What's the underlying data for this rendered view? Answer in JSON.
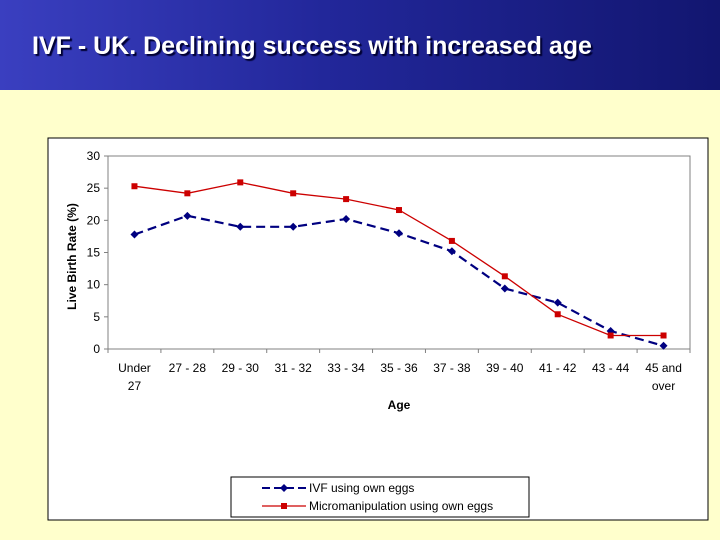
{
  "slide": {
    "title": "IVF - UK.  Declining success with increased age"
  },
  "colors": {
    "header_start": "#3a3fc0",
    "header_end": "#121670",
    "background": "#ffffcc",
    "plot_background": "#ffffff",
    "ivf_series": "#000080",
    "micro_series": "#cc0000"
  },
  "chart_data": {
    "type": "line",
    "xlabel": "Age",
    "ylabel": "Live Birth Rate (%)",
    "ylim": [
      0,
      30
    ],
    "yticks": [
      0,
      5,
      10,
      15,
      20,
      25,
      30
    ],
    "grid": false,
    "legend_position": "bottom",
    "categories": [
      [
        "Under",
        "27"
      ],
      [
        "27 - 28"
      ],
      [
        "29 - 30"
      ],
      [
        "31 - 32"
      ],
      [
        "33 - 34"
      ],
      [
        "35 - 36"
      ],
      [
        "37 - 38"
      ],
      [
        "39 - 40"
      ],
      [
        "41 - 42"
      ],
      [
        "43 - 44"
      ],
      [
        "45 and",
        "over"
      ]
    ],
    "series": [
      {
        "name": "IVF using own eggs",
        "style": "dashed",
        "marker": "diamond",
        "color": "#000080",
        "values": [
          17.8,
          20.7,
          19.0,
          19.0,
          20.2,
          18.0,
          15.2,
          9.4,
          7.2,
          2.8,
          0.5
        ]
      },
      {
        "name": "Micromanipulation using own eggs",
        "style": "solid",
        "marker": "square",
        "color": "#cc0000",
        "values": [
          25.3,
          24.2,
          25.9,
          24.2,
          23.3,
          21.6,
          16.8,
          11.3,
          5.4,
          2.1,
          2.1
        ]
      }
    ]
  }
}
